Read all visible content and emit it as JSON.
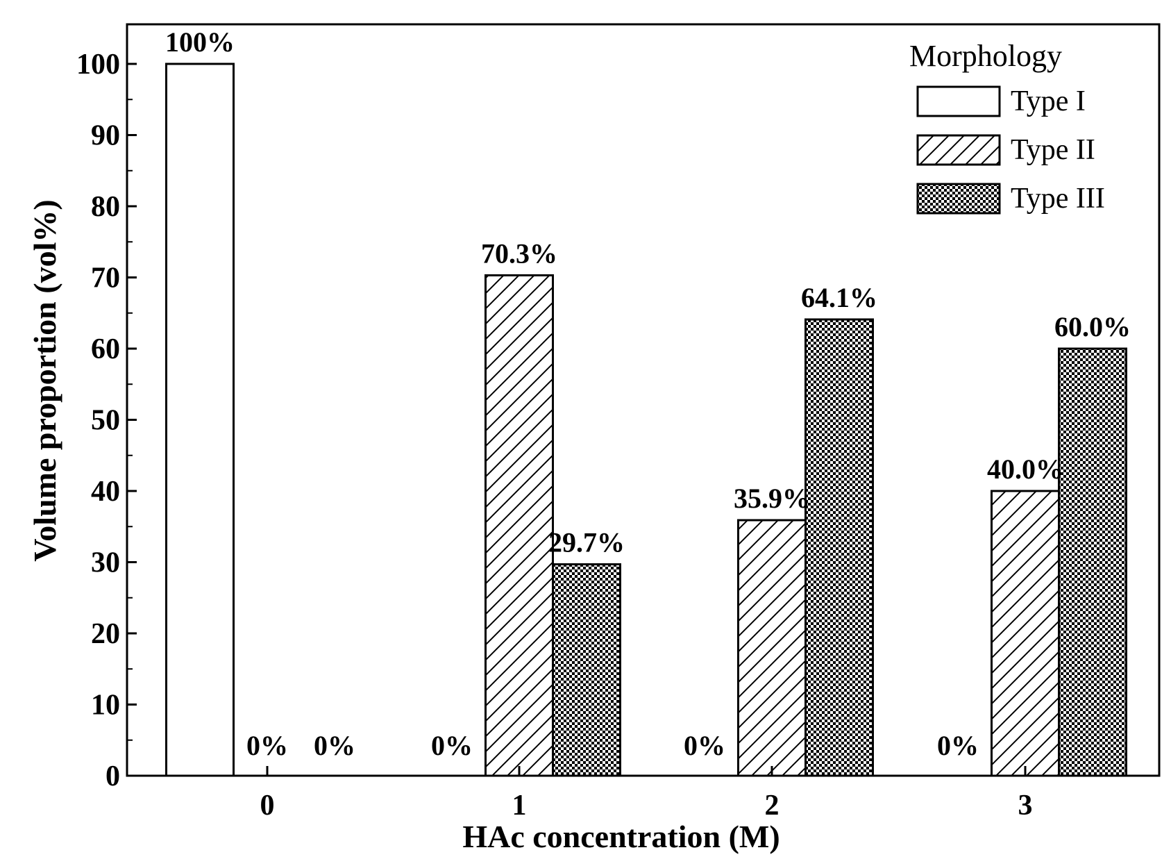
{
  "chart_data": {
    "type": "bar",
    "title": "",
    "xlabel": "HAc concentration (M)",
    "ylabel": "Volume proportion (vol%)",
    "categories": [
      "0",
      "1",
      "2",
      "3"
    ],
    "ylim": [
      0,
      105
    ],
    "yticks": [
      0,
      10,
      20,
      30,
      40,
      50,
      60,
      70,
      80,
      90,
      100
    ],
    "grid": false,
    "legend": {
      "title": "Morphology",
      "position": "top-right"
    },
    "series": [
      {
        "name": "Type I",
        "pattern": "plain",
        "values": [
          100,
          0,
          0,
          0
        ],
        "labels": [
          "100%",
          "0%",
          "0%",
          "0%"
        ]
      },
      {
        "name": "Type II",
        "pattern": "hatched",
        "values": [
          0,
          70.3,
          35.9,
          40.0
        ],
        "labels": [
          "0%",
          "70.3%",
          "35.9%",
          "40.0%"
        ]
      },
      {
        "name": "Type III",
        "pattern": "checker",
        "values": [
          0,
          29.7,
          64.1,
          60.0
        ],
        "labels": [
          "0%",
          "29.7%",
          "64.1%",
          "60.0%"
        ]
      }
    ],
    "colors": {
      "stroke": "#000000",
      "fill": "#ffffff"
    }
  }
}
